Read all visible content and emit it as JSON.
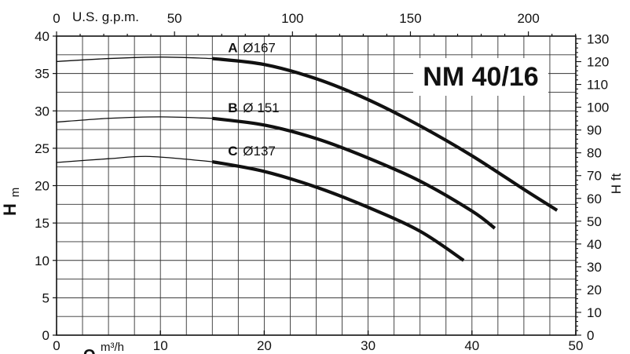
{
  "chart_data": {
    "type": "line",
    "title": "NM 40/16",
    "x_bottom": {
      "unit_symbol": "Q",
      "unit": "m³/h",
      "range": [
        0,
        50
      ],
      "ticks": [
        "0",
        "10",
        "20",
        "30",
        "40",
        "50"
      ]
    },
    "x_top": {
      "label": "U.S. g.p.m.",
      "range": [
        0,
        220.1
      ],
      "ticks": [
        "0",
        "50",
        "100",
        "150",
        "200"
      ]
    },
    "y_left": {
      "label": "H",
      "unit": "m",
      "range": [
        0,
        40
      ],
      "ticks": [
        "0",
        "5",
        "10",
        "15",
        "20",
        "25",
        "30",
        "35",
        "40"
      ]
    },
    "y_right": {
      "label": "H ft",
      "range": [
        0,
        131.2
      ],
      "ticks": [
        "0",
        "10",
        "20",
        "30",
        "40",
        "50",
        "60",
        "70",
        "80",
        "90",
        "100",
        "110",
        "120",
        "130"
      ]
    },
    "grid": true,
    "series": [
      {
        "name": "A",
        "diameter_label": "Ø167",
        "faint": [
          [
            0,
            36.6
          ],
          [
            5,
            37.0
          ],
          [
            10,
            37.2
          ],
          [
            15,
            37.0
          ]
        ],
        "bold": [
          [
            15,
            37.0
          ],
          [
            20,
            36.2
          ],
          [
            25,
            34.3
          ],
          [
            30,
            31.5
          ],
          [
            35,
            28.0
          ],
          [
            40,
            24.0
          ],
          [
            45,
            19.5
          ],
          [
            48.2,
            16.7
          ]
        ]
      },
      {
        "name": "B",
        "diameter_label": "Ø 151",
        "faint": [
          [
            0,
            28.5
          ],
          [
            5,
            29.0
          ],
          [
            10,
            29.2
          ],
          [
            15,
            29.0
          ]
        ],
        "bold": [
          [
            15,
            29.0
          ],
          [
            20,
            28.1
          ],
          [
            25,
            26.3
          ],
          [
            30,
            23.7
          ],
          [
            35,
            20.6
          ],
          [
            40,
            16.6
          ],
          [
            42.2,
            14.3
          ]
        ]
      },
      {
        "name": "C",
        "diameter_label": "Ø137",
        "faint": [
          [
            0,
            23.1
          ],
          [
            5,
            23.6
          ],
          [
            9,
            23.9
          ],
          [
            15,
            23.2
          ]
        ],
        "bold": [
          [
            15,
            23.2
          ],
          [
            20,
            21.9
          ],
          [
            25,
            19.8
          ],
          [
            30,
            17.1
          ],
          [
            35,
            13.9
          ],
          [
            39.2,
            10.0
          ]
        ]
      }
    ]
  }
}
